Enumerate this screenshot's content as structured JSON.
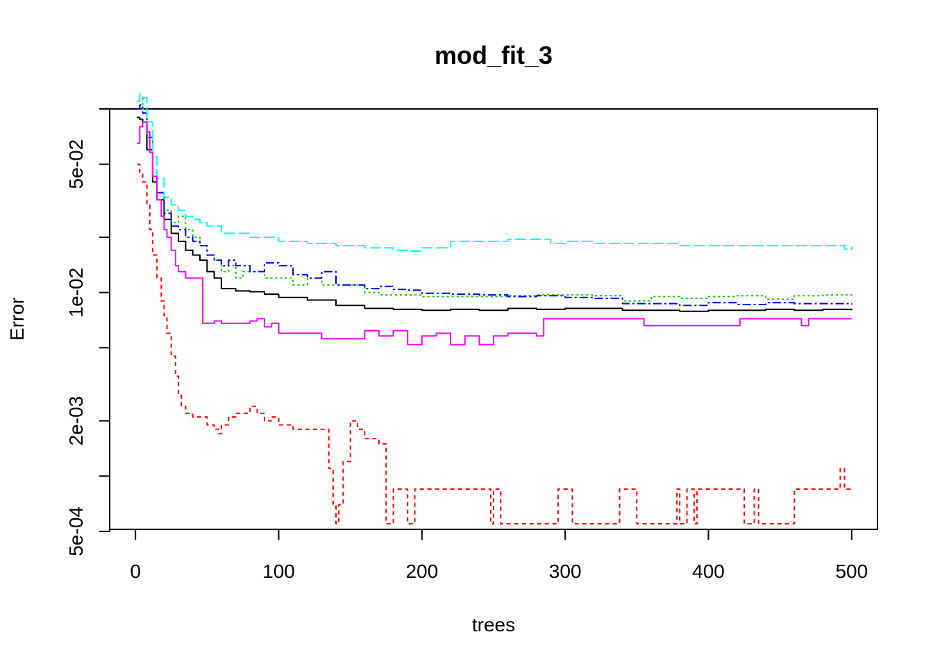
{
  "chart_data": {
    "type": "line",
    "title": "mod_fit_3",
    "xlabel": "trees",
    "ylabel": "Error",
    "xlim": [
      -18,
      518
    ],
    "ylim": [
      0.000513,
      0.1
    ],
    "y_scale": "log",
    "grid": false,
    "legend": "none",
    "x_ticks": [
      0,
      100,
      200,
      300,
      400,
      500
    ],
    "x_tick_labels": [
      "0",
      "100",
      "200",
      "300",
      "400",
      "500"
    ],
    "y_ticks": [
      0.0005,
      0.001,
      0.002,
      0.005,
      0.01,
      0.02,
      0.05,
      0.1
    ],
    "y_tick_labels": [
      "5e-04",
      "",
      "2e-03",
      "",
      "1e-02",
      "",
      "5e-02",
      ""
    ],
    "series": [
      {
        "color": "#000000",
        "dash": "solid",
        "x": [
          1,
          3,
          5,
          8,
          12,
          15,
          20,
          25,
          30,
          35,
          40,
          45,
          50,
          55,
          60,
          70,
          80,
          90,
          100,
          120,
          140,
          160,
          180,
          200,
          220,
          240,
          260,
          280,
          300,
          320,
          340,
          360,
          380,
          400,
          420,
          440,
          460,
          480,
          500
        ],
        "y": [
          0.09,
          0.088,
          0.085,
          0.06,
          0.04,
          0.032,
          0.025,
          0.021,
          0.019,
          0.017,
          0.016,
          0.015,
          0.013,
          0.012,
          0.0105,
          0.0102,
          0.0101,
          0.0098,
          0.0094,
          0.0091,
          0.0085,
          0.0082,
          0.0081,
          0.008,
          0.0081,
          0.008,
          0.0082,
          0.0081,
          0.0082,
          0.0082,
          0.008,
          0.008,
          0.0079,
          0.008,
          0.008,
          0.0081,
          0.008,
          0.0081,
          0.008
        ]
      },
      {
        "color": "#ff0000",
        "dash": "6,5",
        "x": [
          1,
          3,
          5,
          8,
          10,
          12,
          15,
          18,
          20,
          22,
          25,
          28,
          30,
          32,
          35,
          40,
          45,
          50,
          55,
          58,
          60,
          65,
          70,
          75,
          80,
          85,
          90,
          95,
          100,
          110,
          120,
          130,
          135,
          138,
          140,
          142,
          145,
          150,
          155,
          160,
          165,
          170,
          175,
          180,
          185,
          190,
          195,
          200,
          245,
          248,
          250,
          255,
          295,
          300,
          305,
          338,
          345,
          350,
          375,
          378,
          380,
          385,
          390,
          392,
          395,
          400,
          420,
          425,
          430,
          432,
          435,
          455,
          460,
          490,
          492,
          495,
          500
        ],
        "y": [
          0.05,
          0.045,
          0.04,
          0.03,
          0.022,
          0.016,
          0.012,
          0.009,
          0.0075,
          0.006,
          0.0045,
          0.0035,
          0.0028,
          0.0024,
          0.0022,
          0.0021,
          0.0021,
          0.0019,
          0.0018,
          0.0017,
          0.0019,
          0.0021,
          0.0022,
          0.0022,
          0.0024,
          0.0022,
          0.002,
          0.0021,
          0.0019,
          0.0018,
          0.0018,
          0.0018,
          0.0011,
          0.0007,
          0.00055,
          0.0007,
          0.0012,
          0.002,
          0.0018,
          0.0016,
          0.0016,
          0.0015,
          0.00055,
          0.00085,
          0.00085,
          0.00055,
          0.00085,
          0.00085,
          0.00085,
          0.00055,
          0.00085,
          0.00055,
          0.00085,
          0.00085,
          0.00055,
          0.00085,
          0.00085,
          0.00055,
          0.00055,
          0.00085,
          0.00055,
          0.00085,
          0.00055,
          0.00085,
          0.00085,
          0.00085,
          0.00085,
          0.00055,
          0.00055,
          0.00085,
          0.00055,
          0.00055,
          0.00085,
          0.00085,
          0.0011,
          0.00085,
          0.00085
        ]
      },
      {
        "color": "#00cd00",
        "dash": "3,4",
        "x": [
          1,
          3,
          5,
          8,
          12,
          15,
          20,
          25,
          30,
          35,
          40,
          45,
          50,
          55,
          60,
          65,
          70,
          75,
          80,
          85,
          90,
          100,
          110,
          120,
          130,
          140,
          150,
          160,
          170,
          180,
          200,
          220,
          240,
          260,
          280,
          300,
          320,
          340,
          360,
          380,
          400,
          420,
          440,
          460,
          480,
          500
        ],
        "y": [
          0.11,
          0.115,
          0.1,
          0.07,
          0.045,
          0.035,
          0.028,
          0.024,
          0.026,
          0.022,
          0.02,
          0.018,
          0.016,
          0.015,
          0.013,
          0.014,
          0.012,
          0.013,
          0.013,
          0.013,
          0.012,
          0.012,
          0.011,
          0.012,
          0.011,
          0.011,
          0.011,
          0.01,
          0.0097,
          0.0097,
          0.0095,
          0.0095,
          0.0095,
          0.0096,
          0.0097,
          0.0097,
          0.0096,
          0.009,
          0.0095,
          0.0093,
          0.0095,
          0.0096,
          0.0092,
          0.0096,
          0.0097,
          0.0095
        ]
      },
      {
        "color": "#0000ff",
        "dash": "12,4,3,4",
        "x": [
          1,
          3,
          5,
          8,
          12,
          15,
          20,
          25,
          30,
          35,
          40,
          45,
          50,
          55,
          60,
          65,
          70,
          80,
          90,
          100,
          110,
          120,
          130,
          140,
          150,
          160,
          170,
          180,
          190,
          200,
          220,
          240,
          260,
          280,
          300,
          320,
          340,
          360,
          380,
          400,
          420,
          440,
          460,
          480,
          500
        ],
        "y": [
          0.1,
          0.105,
          0.095,
          0.07,
          0.045,
          0.035,
          0.027,
          0.023,
          0.022,
          0.02,
          0.019,
          0.018,
          0.016,
          0.015,
          0.014,
          0.015,
          0.014,
          0.013,
          0.0145,
          0.014,
          0.0125,
          0.012,
          0.013,
          0.011,
          0.011,
          0.0105,
          0.0108,
          0.0104,
          0.0103,
          0.0099,
          0.0098,
          0.0097,
          0.0095,
          0.0096,
          0.0094,
          0.0093,
          0.0087,
          0.0087,
          0.0085,
          0.0088,
          0.0086,
          0.0088,
          0.0087,
          0.0087,
          0.0086
        ]
      },
      {
        "color": "#00ffff",
        "dash": "16,5",
        "x": [
          1,
          3,
          5,
          8,
          12,
          15,
          20,
          25,
          30,
          35,
          40,
          45,
          50,
          60,
          70,
          80,
          90,
          100,
          120,
          140,
          160,
          180,
          190,
          200,
          220,
          240,
          260,
          270,
          280,
          290,
          300,
          320,
          340,
          360,
          380,
          400,
          420,
          440,
          460,
          480,
          495,
          500
        ],
        "y": [
          0.11,
          0.12,
          0.115,
          0.085,
          0.055,
          0.042,
          0.033,
          0.03,
          0.028,
          0.026,
          0.025,
          0.024,
          0.023,
          0.021,
          0.021,
          0.02,
          0.02,
          0.019,
          0.0185,
          0.018,
          0.0175,
          0.017,
          0.0168,
          0.0175,
          0.019,
          0.019,
          0.0195,
          0.0195,
          0.0195,
          0.0185,
          0.019,
          0.0185,
          0.0185,
          0.0185,
          0.018,
          0.018,
          0.018,
          0.018,
          0.018,
          0.018,
          0.0172,
          0.0178
        ]
      },
      {
        "color": "#ff00ff",
        "dash": "solid",
        "x": [
          1,
          3,
          5,
          8,
          10,
          12,
          15,
          18,
          20,
          22,
          25,
          28,
          30,
          35,
          40,
          45,
          47,
          50,
          55,
          60,
          70,
          80,
          85,
          90,
          95,
          100,
          110,
          120,
          130,
          150,
          160,
          170,
          180,
          190,
          200,
          210,
          220,
          230,
          240,
          250,
          260,
          270,
          280,
          285,
          300,
          320,
          340,
          355,
          380,
          400,
          420,
          422,
          440,
          460,
          465,
          470,
          480,
          500
        ],
        "y": [
          0.065,
          0.08,
          0.085,
          0.075,
          0.058,
          0.043,
          0.032,
          0.026,
          0.022,
          0.02,
          0.017,
          0.014,
          0.013,
          0.012,
          0.012,
          0.012,
          0.0068,
          0.0068,
          0.007,
          0.0068,
          0.0068,
          0.007,
          0.0072,
          0.0065,
          0.0068,
          0.006,
          0.006,
          0.006,
          0.0056,
          0.0056,
          0.0062,
          0.0058,
          0.0062,
          0.0052,
          0.0058,
          0.006,
          0.0052,
          0.0058,
          0.0052,
          0.0058,
          0.006,
          0.006,
          0.0058,
          0.0072,
          0.0072,
          0.0072,
          0.0072,
          0.0066,
          0.0066,
          0.0066,
          0.0066,
          0.0072,
          0.0072,
          0.0072,
          0.0066,
          0.0072,
          0.0072,
          0.0072
        ]
      }
    ]
  }
}
